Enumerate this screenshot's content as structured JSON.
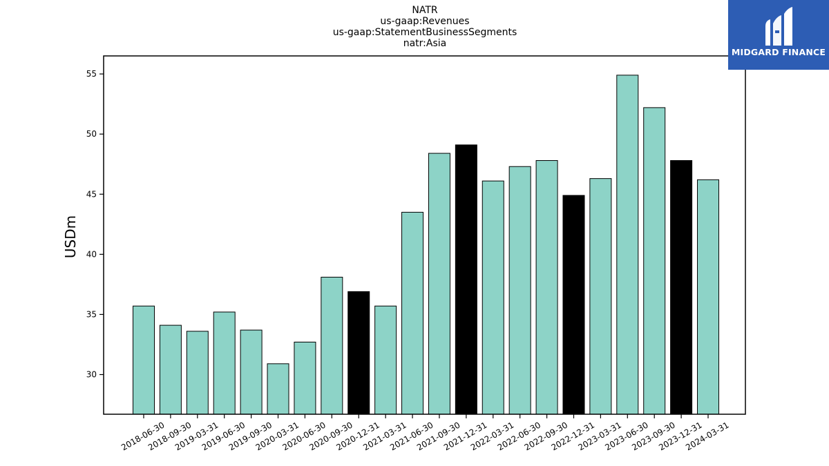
{
  "chart_data": {
    "type": "bar",
    "title_lines": [
      "NATR",
      "us-gaap:Revenues",
      "us-gaap:StatementBusinessSegments",
      "natr:Asia"
    ],
    "ylabel": "USDm",
    "ylim": [
      26.7,
      56.5
    ],
    "yticks": [
      30,
      35,
      40,
      45,
      50,
      55
    ],
    "categories": [
      "2018-06-30",
      "2018-09-30",
      "2019-03-31",
      "2019-06-30",
      "2019-09-30",
      "2020-03-31",
      "2020-06-30",
      "2020-09-30",
      "2020-12-31",
      "2021-03-31",
      "2021-06-30",
      "2021-09-30",
      "2021-12-31",
      "2022-03-31",
      "2022-06-30",
      "2022-09-30",
      "2022-12-31",
      "2023-03-31",
      "2023-06-30",
      "2023-09-30",
      "2023-12-31",
      "2024-03-31"
    ],
    "values": [
      35.7,
      34.1,
      33.6,
      35.2,
      33.7,
      30.9,
      32.7,
      38.1,
      36.9,
      35.7,
      43.5,
      48.4,
      49.1,
      46.1,
      47.3,
      47.8,
      44.9,
      46.3,
      54.9,
      52.2,
      47.8,
      46.2
    ],
    "highlight": [
      false,
      false,
      false,
      false,
      false,
      false,
      false,
      false,
      true,
      false,
      false,
      false,
      true,
      false,
      false,
      false,
      true,
      false,
      false,
      false,
      true,
      false
    ],
    "colors": {
      "bar": "#8dd3c7",
      "highlight": "#000000",
      "edge": "#000000"
    },
    "grid": false
  },
  "logo": {
    "text": "MIDGARD FINANCE",
    "background": "#2d5db4"
  }
}
